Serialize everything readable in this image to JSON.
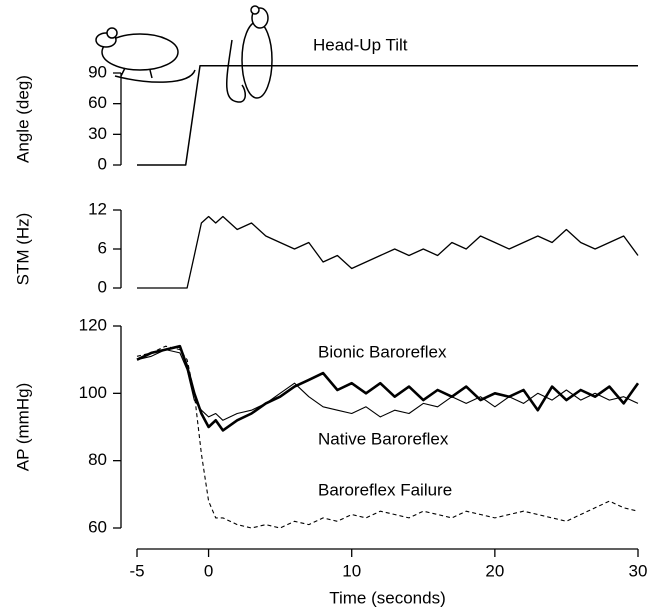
{
  "chart_data": [
    {
      "type": "line",
      "ylabel": "Angle (deg)",
      "annotation": "Head-Up Tilt",
      "xlim": [
        -5,
        30
      ],
      "ylim": [
        0,
        90
      ],
      "yticks": [
        0,
        30,
        60,
        90
      ],
      "x": [
        -5,
        -1.6,
        -0.6,
        30
      ],
      "series": [
        {
          "color": "#000000",
          "width": 1.5,
          "dash": false,
          "values": [
            0,
            0,
            97,
            97
          ]
        }
      ]
    },
    {
      "type": "line",
      "ylabel": "STM (Hz)",
      "xlim": [
        -5,
        30
      ],
      "ylim": [
        0,
        12
      ],
      "yticks": [
        0,
        6,
        12
      ],
      "x": [
        -5,
        -4,
        -3,
        -2,
        -1.5,
        -1,
        -0.5,
        0,
        0.5,
        1,
        2,
        3,
        4,
        5,
        6,
        7,
        8,
        9,
        10,
        11,
        12,
        13,
        14,
        15,
        16,
        17,
        18,
        19,
        20,
        21,
        22,
        23,
        24,
        25,
        26,
        27,
        28,
        29,
        30
      ],
      "series": [
        {
          "color": "#000000",
          "width": 1.3,
          "dash": false,
          "values": [
            0,
            0,
            0,
            0,
            0,
            5,
            10,
            11,
            10,
            11,
            9,
            10,
            8,
            7,
            6,
            7,
            4,
            5,
            3,
            4,
            5,
            6,
            5,
            6,
            5,
            7,
            6,
            8,
            7,
            6,
            7,
            8,
            7,
            9,
            7,
            6,
            7,
            8,
            5
          ]
        }
      ]
    },
    {
      "type": "line",
      "ylabel": "AP (mmHg)",
      "xlabel": "Time (seconds)",
      "xlim": [
        -5,
        30
      ],
      "ylim": [
        60,
        120
      ],
      "yticks": [
        60,
        80,
        100,
        120
      ],
      "xticks": [
        -5,
        0,
        10,
        20,
        30
      ],
      "x": [
        -5,
        -4,
        -3,
        -2,
        -1.5,
        -1,
        -0.5,
        0,
        0.5,
        1,
        2,
        3,
        4,
        5,
        6,
        7,
        8,
        9,
        10,
        11,
        12,
        13,
        14,
        15,
        16,
        17,
        18,
        19,
        20,
        21,
        22,
        23,
        24,
        25,
        26,
        27,
        28,
        29,
        30
      ],
      "series": [
        {
          "name": "Bionic Baroreflex",
          "color": "#000000",
          "width": 2.6,
          "dash": false,
          "values": [
            110,
            112,
            113,
            114,
            108,
            100,
            94,
            90,
            92,
            89,
            92,
            94,
            97,
            99,
            102,
            104,
            106,
            101,
            103,
            100,
            103,
            99,
            102,
            98,
            101,
            99,
            102,
            98,
            100,
            99,
            101,
            95,
            102,
            98,
            101,
            99,
            102,
            97,
            103
          ]
        },
        {
          "name": "Native Baroreflex",
          "color": "#000000",
          "width": 1.1,
          "dash": false,
          "values": [
            110,
            111,
            113,
            112,
            107,
            98,
            95,
            93,
            94,
            92,
            94,
            95,
            97,
            100,
            103,
            99,
            96,
            95,
            94,
            96,
            93,
            95,
            94,
            97,
            96,
            99,
            97,
            99,
            96,
            99,
            97,
            100,
            98,
            101,
            98,
            100,
            98,
            99,
            97
          ]
        },
        {
          "name": "Baroreflex Failure",
          "color": "#000000",
          "width": 1.1,
          "dash": true,
          "values": [
            111,
            112,
            114,
            113,
            110,
            100,
            82,
            68,
            63,
            63,
            61,
            60,
            61,
            60,
            62,
            61,
            63,
            62,
            64,
            63,
            65,
            64,
            63,
            65,
            64,
            63,
            65,
            64,
            63,
            64,
            65,
            64,
            63,
            62,
            64,
            66,
            68,
            66,
            65
          ]
        }
      ]
    }
  ]
}
